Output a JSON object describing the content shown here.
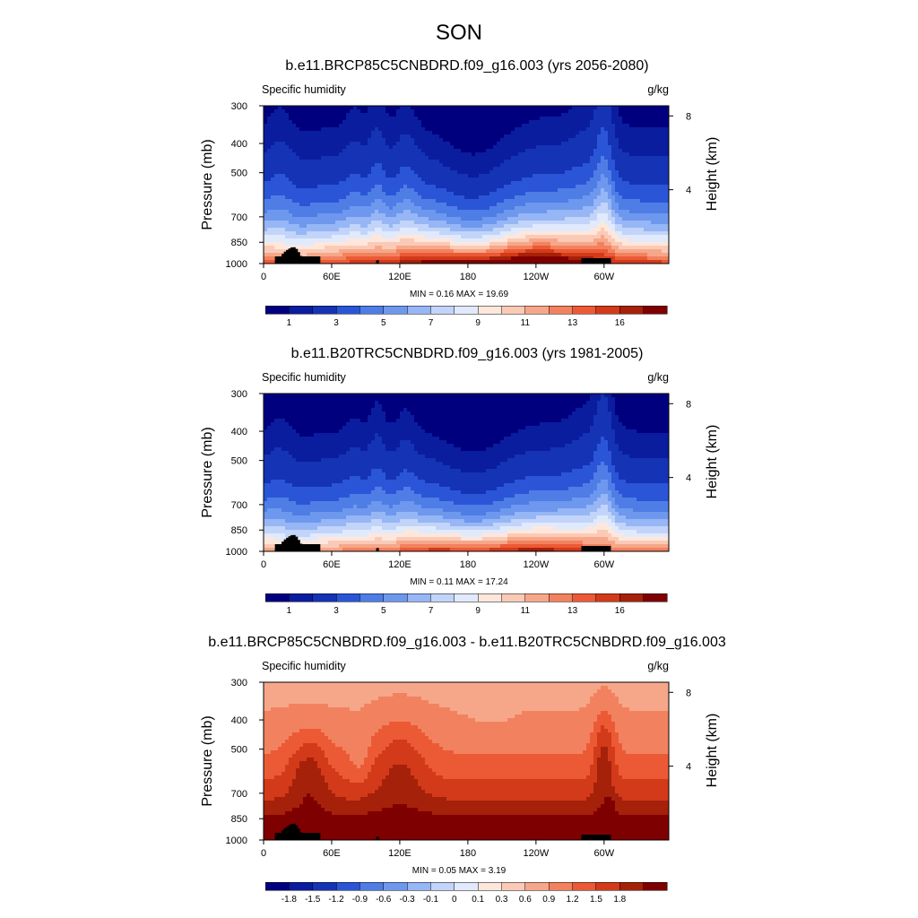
{
  "page": {
    "title": "SON",
    "colors": {
      "seq": [
        "#00007f",
        "#0a1d9e",
        "#1533b5",
        "#2b55d7",
        "#4f7de6",
        "#6e98ee",
        "#96b6f5",
        "#c2d4f9",
        "#e1eafc",
        "#fde7dc",
        "#fbcab6",
        "#f7a789",
        "#f2825f",
        "#ec5a35",
        "#d23a1a",
        "#a6210a",
        "#7f0000"
      ],
      "div": [
        "#00007f",
        "#0a1d9e",
        "#1533b5",
        "#2b55d7",
        "#4f7de6",
        "#6e98ee",
        "#96b6f5",
        "#c2d4f9",
        "#e1eafc",
        "#fde7dc",
        "#fbcab6",
        "#f7a789",
        "#f2825f",
        "#ec5a35",
        "#d23a1a",
        "#a6210a",
        "#7f0000"
      ],
      "topo": "#000000"
    }
  },
  "chart_data": [
    {
      "type": "heatmap",
      "title": "b.e11.BRCP85C5CNBDRD.f09_g16.003 (yrs 2056-2080)",
      "left_label": "Specific humidity",
      "right_label": "g/kg",
      "ylabel": "Pressure (mb)",
      "ylabel_right": "Height (km)",
      "x_ticks": [
        "0",
        "60E",
        "120E",
        "180",
        "120W",
        "60W"
      ],
      "x_tick_values": [
        0,
        60,
        120,
        180,
        240,
        300
      ],
      "xlim": [
        0,
        357
      ],
      "y_ticks": [
        "300",
        "400",
        "500",
        "700",
        "850",
        "1000"
      ],
      "y_tick_values": [
        300,
        400,
        500,
        700,
        850,
        1000
      ],
      "ylim": [
        1000,
        300
      ],
      "y_right_ticks": [
        "8",
        "4"
      ],
      "y_right_values": [
        8,
        4
      ],
      "min": "0.16",
      "max": "19.69",
      "minmax_text": "MIN =   0.16  MAX =  19.69",
      "colorbar_labels": [
        "1",
        "3",
        "5",
        "7",
        "9",
        "11",
        "13",
        "16"
      ],
      "colorbar_levels": [
        0.5,
        1,
        2,
        3,
        4,
        5,
        6,
        7,
        8,
        9,
        10,
        11,
        12,
        13,
        14,
        15,
        16
      ],
      "colormap": "seq",
      "field": "future"
    },
    {
      "type": "heatmap",
      "title": "b.e11.B20TRC5CNBDRD.f09_g16.003 (yrs 1981-2005)",
      "left_label": "Specific humidity",
      "right_label": "g/kg",
      "ylabel": "Pressure (mb)",
      "ylabel_right": "Height (km)",
      "x_ticks": [
        "0",
        "60E",
        "120E",
        "180",
        "120W",
        "60W"
      ],
      "x_tick_values": [
        0,
        60,
        120,
        180,
        240,
        300
      ],
      "xlim": [
        0,
        357
      ],
      "y_ticks": [
        "300",
        "400",
        "500",
        "700",
        "850",
        "1000"
      ],
      "y_tick_values": [
        300,
        400,
        500,
        700,
        850,
        1000
      ],
      "ylim": [
        1000,
        300
      ],
      "y_right_ticks": [
        "8",
        "4"
      ],
      "y_right_values": [
        8,
        4
      ],
      "min": "0.11",
      "max": "17.24",
      "minmax_text": "MIN =   0.11  MAX =  17.24",
      "colorbar_labels": [
        "1",
        "3",
        "5",
        "7",
        "9",
        "11",
        "13",
        "16"
      ],
      "colorbar_levels": [
        0.5,
        1,
        2,
        3,
        4,
        5,
        6,
        7,
        8,
        9,
        10,
        11,
        12,
        13,
        14,
        15,
        16
      ],
      "colormap": "seq",
      "field": "present"
    },
    {
      "type": "heatmap",
      "title": "b.e11.BRCP85C5CNBDRD.f09_g16.003 - b.e11.B20TRC5CNBDRD.f09_g16.003",
      "left_label": "Specific humidity",
      "right_label": "g/kg",
      "ylabel": "Pressure (mb)",
      "ylabel_right": "Height (km)",
      "x_ticks": [
        "0",
        "60E",
        "120E",
        "180",
        "120W",
        "60W"
      ],
      "x_tick_values": [
        0,
        60,
        120,
        180,
        240,
        300
      ],
      "xlim": [
        0,
        357
      ],
      "y_ticks": [
        "300",
        "400",
        "500",
        "700",
        "850",
        "1000"
      ],
      "y_tick_values": [
        300,
        400,
        500,
        700,
        850,
        1000
      ],
      "ylim": [
        1000,
        300
      ],
      "y_right_ticks": [
        "8",
        "4"
      ],
      "y_right_values": [
        8,
        4
      ],
      "min": "0.05",
      "max": "3.19",
      "minmax_text": "MIN =   0.05  MAX =   3.19",
      "colorbar_labels": [
        "-1.8",
        "-1.5",
        "-1.2",
        "-0.9",
        "-0.6",
        "-0.3",
        "-0.1",
        "0",
        "0.1",
        "0.3",
        "0.6",
        "0.9",
        "1.2",
        "1.5",
        "1.8"
      ],
      "colorbar_levels": [
        -2.1,
        -1.8,
        -1.5,
        -1.2,
        -0.9,
        -0.6,
        -0.3,
        -0.1,
        0,
        0.1,
        0.3,
        0.6,
        0.9,
        1.2,
        1.5,
        1.8,
        2.1
      ],
      "colormap": "div",
      "field": "diff"
    }
  ]
}
